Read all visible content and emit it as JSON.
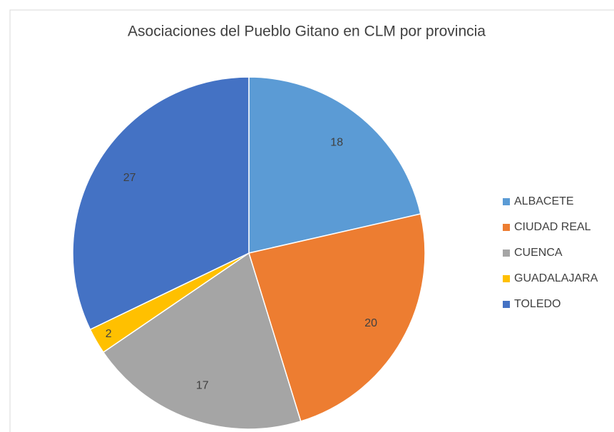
{
  "chart_data": {
    "type": "pie",
    "title": "Asociaciones del Pueblo Gitano en CLM por provincia",
    "categories": [
      "ALBACETE",
      "CIUDAD REAL",
      "CUENCA",
      "GUADALAJARA",
      "TOLEDO"
    ],
    "values": [
      18,
      20,
      17,
      2,
      27
    ],
    "colors": [
      "#5b9bd5",
      "#ed7d31",
      "#a5a5a5",
      "#ffc000",
      "#4472c4"
    ],
    "legend": "right"
  }
}
